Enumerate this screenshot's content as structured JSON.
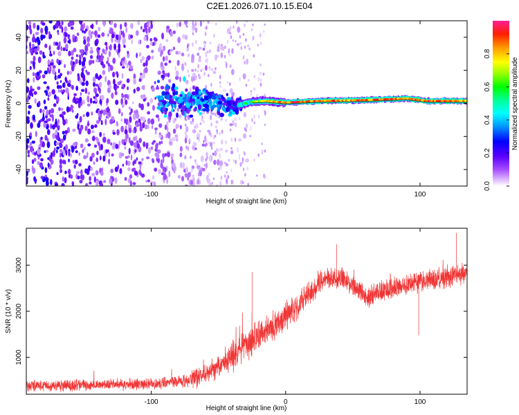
{
  "title": "C2E1.2026.071.10.15.E04",
  "chart_data": [
    {
      "type": "heatmap",
      "xlabel": "Height of straight line (km)",
      "ylabel": "Frequency (Hz)",
      "xlim": [
        -193,
        135
      ],
      "ylim": [
        -50,
        50
      ],
      "xticks": [
        -100,
        0,
        100
      ],
      "xtick_labels": [
        "-100",
        "0",
        "100"
      ],
      "yticks": [
        -40,
        -20,
        0,
        20,
        40
      ],
      "ytick_labels": [
        "-40",
        "-20",
        "0",
        "20",
        "40"
      ],
      "colorbar": {
        "label": "Normalized spectral amplitude",
        "range": [
          0,
          1
        ],
        "ticks": [
          0.0,
          0.2,
          0.4,
          0.6,
          0.8
        ],
        "tick_labels": [
          "0.0",
          "0.2",
          "0.4",
          "0.6",
          "0.8"
        ]
      },
      "features": {
        "noise_end_km": -35,
        "trend": [
          {
            "x": -90,
            "freq": 3,
            "amp": 0.3
          },
          {
            "x": -75,
            "freq": 1,
            "amp": 0.4
          },
          {
            "x": -60,
            "freq": 2,
            "amp": 0.4
          },
          {
            "x": -40,
            "freq": -2,
            "amp": 0.4
          },
          {
            "x": -25,
            "freq": 1,
            "amp": 0.65
          },
          {
            "x": -15,
            "freq": 1.5,
            "amp": 0.85
          },
          {
            "x": 0,
            "freq": 0.5,
            "amp": 0.95
          },
          {
            "x": 25,
            "freq": 1.5,
            "amp": 0.95
          },
          {
            "x": 60,
            "freq": 2,
            "amp": 0.9
          },
          {
            "x": 90,
            "freq": 3,
            "amp": 0.9
          },
          {
            "x": 105,
            "freq": 1.5,
            "amp": 0.95
          },
          {
            "x": 135,
            "freq": 1.5,
            "amp": 0.9
          }
        ]
      }
    },
    {
      "type": "line",
      "xlabel": "Height of straight line (km)",
      "ylabel": "SNR (10 * v/v)",
      "xlim": [
        -193,
        135
      ],
      "ylim": [
        200,
        3800
      ],
      "xticks": [
        -100,
        0,
        100
      ],
      "xtick_labels": [
        "-100",
        "0",
        "100"
      ],
      "yticks": [
        1000,
        2000,
        3000
      ],
      "ytick_labels": [
        "1000",
        "2000",
        "3000"
      ],
      "color": "#f03535",
      "trend": {
        "x": [
          -193,
          -100,
          -70,
          -50,
          -30,
          -10,
          10,
          30,
          45,
          60,
          80,
          100,
          120,
          135
        ],
        "y": [
          380,
          420,
          500,
          800,
          1250,
          1650,
          2150,
          2750,
          2700,
          2300,
          2500,
          2650,
          2750,
          2850
        ]
      },
      "spikes": [
        {
          "x": -25,
          "y": 2850
        },
        {
          "x": 38,
          "y": 3450
        },
        {
          "x": 127,
          "y": 3700
        },
        {
          "x": 99,
          "y": 1480
        }
      ]
    }
  ]
}
